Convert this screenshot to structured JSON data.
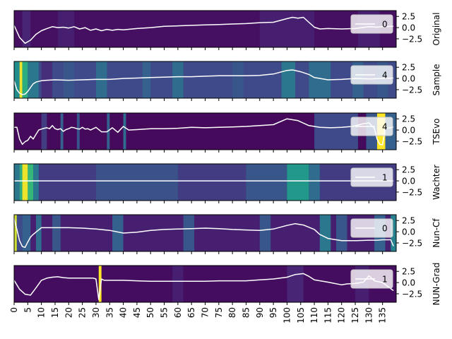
{
  "chart_data": {
    "type": "heatmap",
    "description_of_layout": "",
    "x_ticks": [
      0,
      5,
      10,
      15,
      20,
      25,
      30,
      35,
      40,
      45,
      50,
      55,
      60,
      65,
      70,
      75,
      80,
      85,
      90,
      95,
      100,
      105,
      110,
      115,
      120,
      125,
      130,
      135
    ],
    "xlim": [
      0,
      140
    ],
    "y_ticks": [
      2.5,
      0.0,
      -2.5
    ],
    "y_tick_labels": [
      "2.5",
      "0.0",
      "−2.5"
    ],
    "ylim": [
      -4.4,
      3.8
    ],
    "colormap": "viridis",
    "line_color": "#ffffff",
    "panels": [
      {
        "row_label": "Original",
        "legend_label": "0",
        "series_x": [
          0,
          2,
          4,
          6,
          8,
          10,
          12,
          14,
          16,
          18,
          20,
          22,
          24,
          26,
          28,
          30,
          32,
          34,
          36,
          38,
          40,
          45,
          50,
          55,
          60,
          65,
          70,
          75,
          80,
          85,
          90,
          95,
          100,
          102,
          104,
          106,
          108,
          110,
          112,
          115,
          120,
          125,
          130,
          133,
          135,
          139
        ],
        "series_y": [
          0.5,
          -2.2,
          -3.5,
          -2.8,
          -1.5,
          -0.7,
          -0.2,
          0.2,
          0.0,
          0.1,
          -0.1,
          0.2,
          -0.3,
          0.0,
          -0.6,
          -0.3,
          -0.7,
          -0.4,
          -0.6,
          -0.4,
          -0.5,
          -0.2,
          0.0,
          0.3,
          0.4,
          0.5,
          0.6,
          0.7,
          0.8,
          0.9,
          1.1,
          1.2,
          2.0,
          2.3,
          2.1,
          2.3,
          1.2,
          0.1,
          -0.3,
          -0.2,
          -0.3,
          -0.2,
          0.2,
          0.1,
          0.2,
          0.3
        ],
        "heat_bands": [
          {
            "x_from": 0,
            "x_to": 140,
            "intensity": 0.05
          },
          {
            "x_from": 3,
            "x_to": 6,
            "intensity": 0.12
          },
          {
            "x_from": 16,
            "x_to": 22,
            "intensity": 0.1
          },
          {
            "x_from": 90,
            "x_to": 110,
            "intensity": 0.1
          },
          {
            "x_from": 126,
            "x_to": 134,
            "intensity": 0.1
          }
        ]
      },
      {
        "row_label": "Sample",
        "legend_label": "4",
        "series_x": [
          0,
          1,
          2,
          3,
          4,
          5,
          6,
          7,
          8,
          10,
          12,
          15,
          20,
          25,
          30,
          35,
          40,
          45,
          50,
          55,
          60,
          65,
          70,
          75,
          80,
          85,
          90,
          95,
          100,
          102,
          105,
          108,
          110,
          115,
          120,
          125,
          130,
          135,
          139
        ],
        "series_y": [
          -0.5,
          -2.5,
          -3.3,
          -3.6,
          -3.5,
          -2.9,
          -2.0,
          -1.2,
          -0.8,
          -0.5,
          -0.4,
          -0.3,
          -0.4,
          -0.3,
          -0.2,
          -0.2,
          0.0,
          0.1,
          0.2,
          0.3,
          0.4,
          0.4,
          0.5,
          0.6,
          0.6,
          0.6,
          0.7,
          1.0,
          1.8,
          1.9,
          1.5,
          0.9,
          0.2,
          -0.3,
          -0.2,
          0.0,
          -0.1,
          0.0,
          0.1
        ],
        "heat_bands": [
          {
            "x_from": 0,
            "x_to": 140,
            "intensity": 0.25
          },
          {
            "x_from": 0,
            "x_to": 2,
            "intensity": 0.55
          },
          {
            "x_from": 2,
            "x_to": 3,
            "intensity": 0.98
          },
          {
            "x_from": 3,
            "x_to": 5,
            "intensity": 0.7
          },
          {
            "x_from": 5,
            "x_to": 9,
            "intensity": 0.45
          },
          {
            "x_from": 10,
            "x_to": 14,
            "intensity": 0.15
          },
          {
            "x_from": 18,
            "x_to": 22,
            "intensity": 0.3
          },
          {
            "x_from": 30,
            "x_to": 34,
            "intensity": 0.4
          },
          {
            "x_from": 47,
            "x_to": 50,
            "intensity": 0.35
          },
          {
            "x_from": 58,
            "x_to": 62,
            "intensity": 0.4
          },
          {
            "x_from": 80,
            "x_to": 84,
            "intensity": 0.3
          },
          {
            "x_from": 98,
            "x_to": 103,
            "intensity": 0.45
          },
          {
            "x_from": 108,
            "x_to": 116,
            "intensity": 0.4
          },
          {
            "x_from": 124,
            "x_to": 128,
            "intensity": 0.35
          },
          {
            "x_from": 133,
            "x_to": 137,
            "intensity": 0.3
          }
        ]
      },
      {
        "row_label": "TSEvo",
        "legend_label": "4",
        "series_x": [
          0,
          1,
          2,
          3,
          4,
          5,
          6,
          7,
          8,
          9,
          10,
          11,
          12,
          13,
          14,
          15,
          16,
          17,
          18,
          19,
          20,
          21,
          22,
          23,
          24,
          25,
          26,
          27,
          28,
          30,
          32,
          34,
          36,
          38,
          40,
          42,
          45,
          50,
          55,
          60,
          65,
          70,
          75,
          80,
          85,
          90,
          95,
          100,
          104,
          108,
          112,
          116,
          120,
          124,
          128,
          130,
          132,
          133,
          134,
          135,
          136,
          138,
          139
        ],
        "series_y": [
          0.6,
          0.6,
          -2.0,
          -3.2,
          -2.6,
          -2.3,
          -1.4,
          -2.0,
          -1.0,
          0.0,
          0.2,
          0.4,
          0.5,
          0.3,
          1.0,
          0.3,
          0.1,
          0.3,
          -0.3,
          0.1,
          0.3,
          0.6,
          0.5,
          0.3,
          0.2,
          0.6,
          0.2,
          0.3,
          0.0,
          0.6,
          -0.4,
          -0.4,
          0.5,
          -0.5,
          0.8,
          0.0,
          0.1,
          0.3,
          0.3,
          0.4,
          0.6,
          0.5,
          0.6,
          0.7,
          0.8,
          1.0,
          1.2,
          2.5,
          2.1,
          1.0,
          0.6,
          0.5,
          0.6,
          0.8,
          1.4,
          1.6,
          0.4,
          -2.0,
          -3.2,
          -3.3,
          0.4,
          0.5,
          0.7
        ],
        "heat_bands": [
          {
            "x_from": 0,
            "x_to": 140,
            "intensity": 0.03
          },
          {
            "x_from": 10,
            "x_to": 12,
            "intensity": 0.2
          },
          {
            "x_from": 17,
            "x_to": 18,
            "intensity": 0.35
          },
          {
            "x_from": 23,
            "x_to": 24,
            "intensity": 0.3
          },
          {
            "x_from": 34,
            "x_to": 35,
            "intensity": 0.35
          },
          {
            "x_from": 40,
            "x_to": 41,
            "intensity": 0.4
          },
          {
            "x_from": 110,
            "x_to": 126,
            "intensity": 0.25
          },
          {
            "x_from": 129,
            "x_to": 133,
            "intensity": 0.3
          },
          {
            "x_from": 133,
            "x_to": 136,
            "intensity": 1.0
          },
          {
            "x_from": 136,
            "x_to": 140,
            "intensity": 0.35
          }
        ]
      },
      {
        "row_label": "Wachter",
        "legend_label": "1",
        "series_x": [
          0,
          139
        ],
        "series_y": [
          0.0,
          0.0
        ],
        "heat_bands": [
          {
            "x_from": 0,
            "x_to": 140,
            "intensity": 0.2
          },
          {
            "x_from": 0,
            "x_to": 2,
            "intensity": 0.45
          },
          {
            "x_from": 2,
            "x_to": 3,
            "intensity": 0.7
          },
          {
            "x_from": 3,
            "x_to": 5,
            "intensity": 0.98
          },
          {
            "x_from": 5,
            "x_to": 7,
            "intensity": 0.75
          },
          {
            "x_from": 7,
            "x_to": 9,
            "intensity": 0.45
          },
          {
            "x_from": 30,
            "x_to": 60,
            "intensity": 0.28
          },
          {
            "x_from": 85,
            "x_to": 100,
            "intensity": 0.3
          },
          {
            "x_from": 100,
            "x_to": 108,
            "intensity": 0.6
          },
          {
            "x_from": 108,
            "x_to": 112,
            "intensity": 0.4
          }
        ]
      },
      {
        "row_label": "Nun-Cf",
        "legend_label": "0",
        "series_x": [
          0,
          1,
          2,
          3,
          4,
          5,
          6,
          7,
          8,
          10,
          12,
          15,
          20,
          25,
          30,
          35,
          40,
          45,
          50,
          55,
          60,
          65,
          70,
          75,
          80,
          85,
          90,
          95,
          100,
          103,
          106,
          110,
          112,
          115,
          120,
          125,
          130,
          133,
          135,
          138,
          139
        ],
        "series_y": [
          3.0,
          0.5,
          -2.0,
          -3.3,
          -3.5,
          -2.3,
          -1.2,
          -0.6,
          -0.1,
          0.9,
          0.9,
          0.9,
          0.9,
          0.8,
          0.6,
          0.3,
          -0.3,
          -0.1,
          0.3,
          0.5,
          0.6,
          0.7,
          0.8,
          0.7,
          0.5,
          0.4,
          0.3,
          0.6,
          1.4,
          1.8,
          1.5,
          0.5,
          -0.6,
          -1.5,
          -2.0,
          -2.0,
          -1.9,
          -1.9,
          -1.8,
          -1.8,
          -3.2
        ],
        "heat_bands": [
          {
            "x_from": 0,
            "x_to": 140,
            "intensity": 0.1
          },
          {
            "x_from": 0,
            "x_to": 1,
            "intensity": 0.95
          },
          {
            "x_from": 1,
            "x_to": 3,
            "intensity": 0.25
          },
          {
            "x_from": 3,
            "x_to": 6,
            "intensity": 0.35
          },
          {
            "x_from": 8,
            "x_to": 10,
            "intensity": 0.4
          },
          {
            "x_from": 14,
            "x_to": 17,
            "intensity": 0.3
          },
          {
            "x_from": 36,
            "x_to": 40,
            "intensity": 0.35
          },
          {
            "x_from": 62,
            "x_to": 66,
            "intensity": 0.3
          },
          {
            "x_from": 90,
            "x_to": 94,
            "intensity": 0.3
          },
          {
            "x_from": 112,
            "x_to": 116,
            "intensity": 0.45
          },
          {
            "x_from": 118,
            "x_to": 122,
            "intensity": 0.3
          },
          {
            "x_from": 132,
            "x_to": 136,
            "intensity": 0.35
          },
          {
            "x_from": 138,
            "x_to": 140,
            "intensity": 0.5
          }
        ]
      },
      {
        "row_label": "NUN-Grad",
        "legend_label": "1",
        "series_x": [
          0,
          2,
          4,
          6,
          8,
          10,
          12,
          14,
          16,
          18,
          20,
          25,
          29,
          30,
          31,
          32,
          33,
          35,
          40,
          45,
          50,
          55,
          60,
          65,
          70,
          75,
          80,
          85,
          90,
          95,
          100,
          103,
          106,
          108,
          110,
          115,
          120,
          122,
          125,
          128,
          130,
          132,
          135,
          139
        ],
        "series_y": [
          0.5,
          -1.5,
          -2.6,
          -2.8,
          -1.2,
          0.5,
          1.0,
          1.2,
          1.3,
          1.1,
          1.0,
          1.0,
          1.0,
          0.8,
          -3.8,
          0.8,
          0.5,
          0.5,
          0.5,
          0.4,
          0.3,
          0.3,
          0.3,
          0.3,
          0.3,
          0.4,
          0.4,
          0.4,
          0.6,
          0.8,
          1.2,
          1.8,
          2.0,
          1.4,
          0.6,
          0.1,
          -0.5,
          -0.3,
          -0.2,
          0.1,
          1.5,
          0.4,
          0.0,
          -1.8
        ],
        "heat_bands": [
          {
            "x_from": 0,
            "x_to": 140,
            "intensity": 0.04
          },
          {
            "x_from": 31,
            "x_to": 32,
            "intensity": 1.0
          },
          {
            "x_from": 58,
            "x_to": 62,
            "intensity": 0.1
          },
          {
            "x_from": 100,
            "x_to": 106,
            "intensity": 0.12
          },
          {
            "x_from": 125,
            "x_to": 130,
            "intensity": 0.1
          }
        ]
      }
    ]
  }
}
